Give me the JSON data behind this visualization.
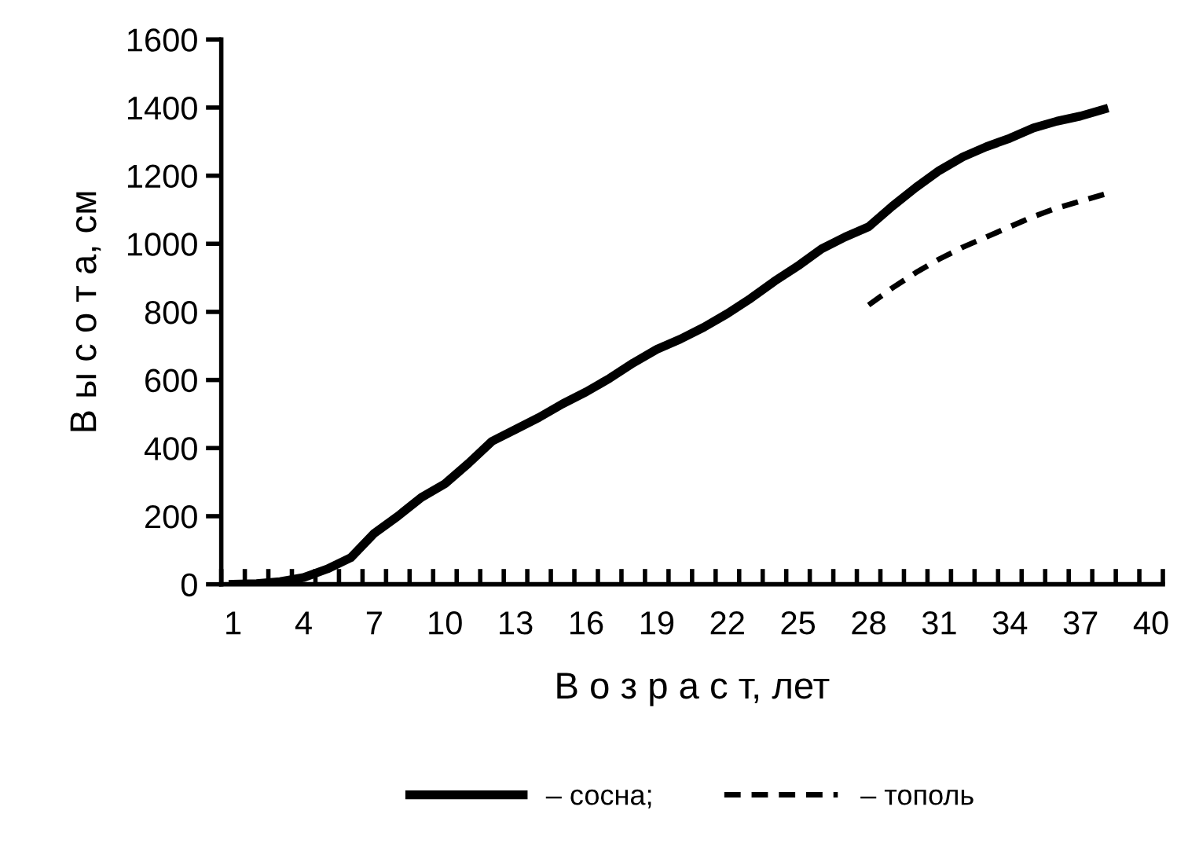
{
  "chart_data": {
    "type": "line",
    "xlabel": "В о з р а с т, лет",
    "ylabel": "В ы с о т а, см",
    "categories": [
      "1",
      null,
      null,
      "4",
      null,
      null,
      "7",
      null,
      null,
      "10",
      null,
      null,
      "13",
      null,
      null,
      "16",
      null,
      null,
      "19",
      null,
      null,
      "22",
      null,
      null,
      "25",
      null,
      null,
      "28",
      null,
      null,
      "31",
      null,
      null,
      "34",
      null,
      null,
      "37",
      null,
      null,
      "40"
    ],
    "series": [
      {
        "name": "– сосна;",
        "color": "#000000",
        "line_style": "solid",
        "values": [
          0,
          2,
          8,
          20,
          45,
          78,
          150,
          200,
          255,
          295,
          355,
          420,
          455,
          490,
          530,
          565,
          605,
          650,
          690,
          720,
          755,
          795,
          840,
          890,
          935,
          985,
          1020,
          1050,
          1110,
          1165,
          1215,
          1255,
          1285,
          1310,
          1340,
          1360,
          1375,
          1395,
          null,
          null
        ]
      },
      {
        "name": "– тополь",
        "color": "#000000",
        "line_style": "dashed",
        "values": [
          null,
          null,
          null,
          null,
          null,
          null,
          null,
          null,
          null,
          null,
          null,
          null,
          null,
          null,
          null,
          null,
          null,
          null,
          null,
          null,
          null,
          null,
          null,
          null,
          null,
          null,
          null,
          820,
          870,
          915,
          955,
          990,
          1020,
          1050,
          1080,
          1105,
          1125,
          1145,
          null,
          null
        ]
      }
    ],
    "ylim": [
      0,
      1600
    ],
    "yticks": [
      0,
      200,
      400,
      600,
      800,
      1000,
      1200,
      1400,
      1600
    ],
    "grid": false,
    "legend": "bottom",
    "marker": "none"
  }
}
